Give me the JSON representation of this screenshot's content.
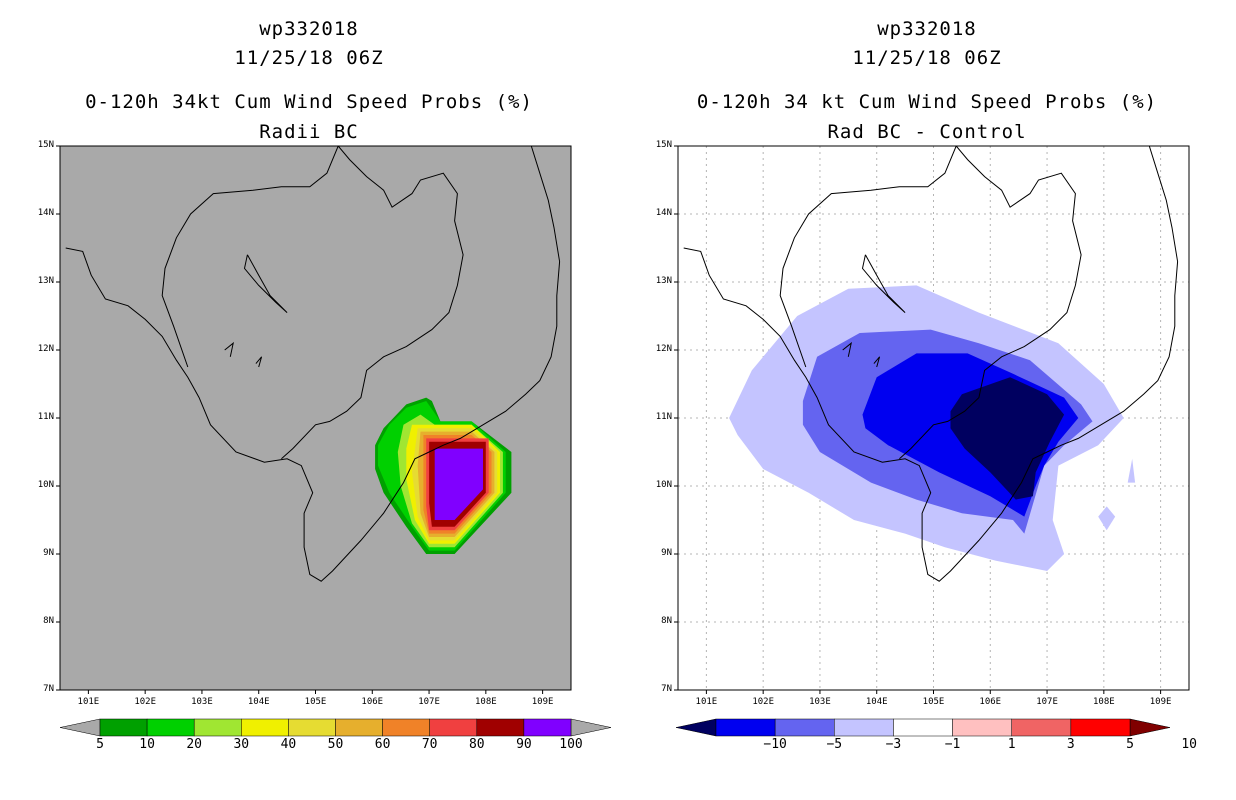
{
  "chart_data": [
    {
      "type": "contour-map",
      "storm_id": "wp332018",
      "datetime": "11/25/18 06Z",
      "title": "0-120h 34kt Cum Wind Speed Probs (%)",
      "subtitle": "Radii BC",
      "xlim": [
        100.5,
        109.5
      ],
      "ylim": [
        7,
        15
      ],
      "x_ticks": [
        "101E",
        "102E",
        "103E",
        "104E",
        "105E",
        "106E",
        "107E",
        "108E",
        "109E"
      ],
      "y_ticks": [
        "7N",
        "8N",
        "9N",
        "10N",
        "11N",
        "12N",
        "13N",
        "14N",
        "15N"
      ],
      "background": "#a9a9a9",
      "colorbar": {
        "labels": [
          "5",
          "10",
          "20",
          "30",
          "40",
          "50",
          "60",
          "70",
          "80",
          "90",
          "100"
        ],
        "colors": [
          "#00a000",
          "#00d000",
          "#a0e632",
          "#f0f000",
          "#e6dc32",
          "#e6af2d",
          "#f08228",
          "#f04040",
          "#a00000",
          "#8000ff"
        ]
      },
      "contour_levels": [
        {
          "level": 5,
          "color": "#00a000",
          "polygon": [
            [
              106.2,
              10.85
            ],
            [
              106.6,
              11.2
            ],
            [
              106.95,
              11.3
            ],
            [
              107.05,
              11.25
            ],
            [
              107.2,
              10.95
            ],
            [
              107.75,
              10.95
            ],
            [
              108.45,
              10.5
            ],
            [
              108.45,
              9.9
            ],
            [
              107.45,
              9.0
            ],
            [
              106.95,
              9.0
            ],
            [
              106.6,
              9.4
            ],
            [
              106.2,
              9.9
            ],
            [
              106.05,
              10.25
            ],
            [
              106.05,
              10.6
            ]
          ]
        },
        {
          "level": 10,
          "color": "#00d000",
          "polygon": [
            [
              106.3,
              10.9
            ],
            [
              106.6,
              11.15
            ],
            [
              106.95,
              11.25
            ],
            [
              107.2,
              10.95
            ],
            [
              107.75,
              10.95
            ],
            [
              108.35,
              10.5
            ],
            [
              108.35,
              9.9
            ],
            [
              107.45,
              9.05
            ],
            [
              107.0,
              9.05
            ],
            [
              106.7,
              9.4
            ],
            [
              106.3,
              9.9
            ],
            [
              106.1,
              10.3
            ],
            [
              106.1,
              10.6
            ]
          ]
        },
        {
          "level": 20,
          "color": "#a0e632",
          "polygon": [
            [
              106.55,
              10.9
            ],
            [
              106.85,
              11.05
            ],
            [
              107.1,
              10.9
            ],
            [
              107.75,
              10.9
            ],
            [
              108.3,
              10.5
            ],
            [
              108.3,
              9.9
            ],
            [
              107.45,
              9.1
            ],
            [
              107.0,
              9.1
            ],
            [
              106.7,
              9.45
            ],
            [
              106.5,
              10.0
            ],
            [
              106.45,
              10.5
            ]
          ]
        },
        {
          "level": 30,
          "color": "#f0f000",
          "polygon": [
            [
              106.7,
              10.9
            ],
            [
              107.1,
              10.9
            ],
            [
              107.75,
              10.9
            ],
            [
              108.25,
              10.5
            ],
            [
              108.25,
              9.9
            ],
            [
              107.45,
              9.15
            ],
            [
              107.0,
              9.15
            ],
            [
              106.75,
              9.5
            ],
            [
              106.6,
              10.1
            ],
            [
              106.6,
              10.55
            ]
          ]
        },
        {
          "level": 40,
          "color": "#e6dc32",
          "polygon": [
            [
              106.8,
              10.85
            ],
            [
              107.75,
              10.85
            ],
            [
              108.2,
              10.5
            ],
            [
              108.2,
              9.9
            ],
            [
              107.45,
              9.2
            ],
            [
              107.0,
              9.2
            ],
            [
              106.8,
              9.55
            ],
            [
              106.7,
              10.2
            ]
          ]
        },
        {
          "level": 50,
          "color": "#e6af2d",
          "polygon": [
            [
              106.85,
              10.8
            ],
            [
              107.75,
              10.8
            ],
            [
              108.15,
              10.5
            ],
            [
              108.15,
              9.9
            ],
            [
              107.45,
              9.25
            ],
            [
              107.0,
              9.25
            ],
            [
              106.85,
              9.6
            ],
            [
              106.8,
              10.3
            ]
          ]
        },
        {
          "level": 60,
          "color": "#f08228",
          "polygon": [
            [
              106.9,
              10.75
            ],
            [
              107.75,
              10.75
            ],
            [
              108.1,
              10.5
            ],
            [
              108.1,
              9.9
            ],
            [
              107.45,
              9.3
            ],
            [
              107.0,
              9.3
            ],
            [
              106.9,
              9.65
            ]
          ]
        },
        {
          "level": 70,
          "color": "#f04040",
          "polygon": [
            [
              106.95,
              10.7
            ],
            [
              108.05,
              10.7
            ],
            [
              108.05,
              9.9
            ],
            [
              107.45,
              9.35
            ],
            [
              107.0,
              9.35
            ],
            [
              106.95,
              9.7
            ]
          ]
        },
        {
          "level": 80,
          "color": "#a00000",
          "polygon": [
            [
              107.0,
              10.65
            ],
            [
              108.0,
              10.65
            ],
            [
              108.0,
              9.9
            ],
            [
              107.45,
              9.4
            ],
            [
              107.05,
              9.4
            ],
            [
              107.0,
              9.75
            ]
          ]
        },
        {
          "level": 90,
          "color": "#8000ff",
          "polygon": [
            [
              107.1,
              10.55
            ],
            [
              107.95,
              10.55
            ],
            [
              107.95,
              9.95
            ],
            [
              107.45,
              9.5
            ],
            [
              107.1,
              9.5
            ]
          ]
        }
      ]
    },
    {
      "type": "contour-map",
      "storm_id": "wp332018",
      "datetime": "11/25/18 06Z",
      "title": "0-120h 34 kt Cum Wind Speed Probs (%)",
      "subtitle": "Rad BC - Control",
      "xlim": [
        100.5,
        109.5
      ],
      "ylim": [
        7,
        15
      ],
      "x_ticks": [
        "101E",
        "102E",
        "103E",
        "104E",
        "105E",
        "106E",
        "107E",
        "108E",
        "109E"
      ],
      "y_ticks": [
        "7N",
        "8N",
        "9N",
        "10N",
        "11N",
        "12N",
        "13N",
        "14N",
        "15N"
      ],
      "background": "#ffffff",
      "grid": true,
      "colorbar": {
        "labels": [
          "-10",
          "-5",
          "-3",
          "-1",
          "1",
          "3",
          "5",
          "10"
        ],
        "colors": [
          "#000060",
          "#0000f0",
          "#6464f0",
          "#c4c4ff",
          "#ffffff",
          "#ffc0c0",
          "#f06464",
          "#ff0000",
          "#800000"
        ]
      },
      "contour_levels": [
        {
          "level": -1,
          "color": "#c4c4ff",
          "polygon": [
            [
              101.4,
              11.0
            ],
            [
              101.8,
              11.7
            ],
            [
              102.6,
              12.5
            ],
            [
              103.5,
              12.9
            ],
            [
              104.7,
              12.95
            ],
            [
              105.8,
              12.55
            ],
            [
              107.2,
              12.1
            ],
            [
              108.0,
              11.5
            ],
            [
              108.35,
              11.0
            ],
            [
              107.9,
              10.6
            ],
            [
              107.2,
              10.3
            ],
            [
              107.1,
              9.5
            ],
            [
              107.3,
              9.0
            ],
            [
              107.0,
              8.75
            ],
            [
              106.1,
              8.9
            ],
            [
              105.2,
              9.1
            ],
            [
              104.5,
              9.3
            ],
            [
              103.6,
              9.5
            ],
            [
              102.8,
              9.9
            ],
            [
              102.0,
              10.25
            ],
            [
              101.55,
              10.75
            ]
          ]
        },
        {
          "level": -3,
          "color": "#6464f0",
          "polygon": [
            [
              102.7,
              11.25
            ],
            [
              102.95,
              11.9
            ],
            [
              103.7,
              12.25
            ],
            [
              104.95,
              12.3
            ],
            [
              105.8,
              12.1
            ],
            [
              106.7,
              11.85
            ],
            [
              107.6,
              11.2
            ],
            [
              107.8,
              10.95
            ],
            [
              107.3,
              10.6
            ],
            [
              106.95,
              10.3
            ],
            [
              106.6,
              9.3
            ],
            [
              106.4,
              9.5
            ],
            [
              105.5,
              9.6
            ],
            [
              104.7,
              9.8
            ],
            [
              103.9,
              10.05
            ],
            [
              103.0,
              10.5
            ],
            [
              102.7,
              10.9
            ]
          ]
        },
        {
          "level": -5,
          "color": "#0000f0",
          "polygon": [
            [
              103.75,
              11.05
            ],
            [
              104.0,
              11.6
            ],
            [
              104.7,
              11.95
            ],
            [
              105.6,
              11.95
            ],
            [
              106.4,
              11.65
            ],
            [
              107.3,
              11.3
            ],
            [
              107.55,
              11.0
            ],
            [
              107.2,
              10.65
            ],
            [
              106.95,
              10.3
            ],
            [
              106.8,
              10.0
            ],
            [
              106.6,
              9.55
            ],
            [
              106.0,
              9.85
            ],
            [
              105.1,
              10.2
            ],
            [
              104.2,
              10.6
            ],
            [
              103.8,
              10.85
            ]
          ]
        },
        {
          "level": -10,
          "color": "#000060",
          "polygon": [
            [
              105.3,
              11.1
            ],
            [
              105.5,
              11.35
            ],
            [
              106.35,
              11.6
            ],
            [
              107.0,
              11.35
            ],
            [
              107.3,
              11.05
            ],
            [
              107.05,
              10.65
            ],
            [
              106.8,
              10.2
            ],
            [
              106.75,
              9.85
            ],
            [
              106.45,
              9.8
            ],
            [
              106.0,
              10.2
            ],
            [
              105.55,
              10.55
            ],
            [
              105.3,
              10.85
            ]
          ]
        },
        {
          "level": -1,
          "color": "#c4c4ff",
          "polygon": [
            [
              107.9,
              9.55
            ],
            [
              108.05,
              9.7
            ],
            [
              108.2,
              9.55
            ],
            [
              108.05,
              9.35
            ]
          ]
        },
        {
          "level": -1,
          "color": "#c4c4ff",
          "polygon": [
            [
              108.42,
              10.05
            ],
            [
              108.5,
              10.4
            ],
            [
              108.55,
              10.05
            ]
          ]
        }
      ]
    }
  ]
}
